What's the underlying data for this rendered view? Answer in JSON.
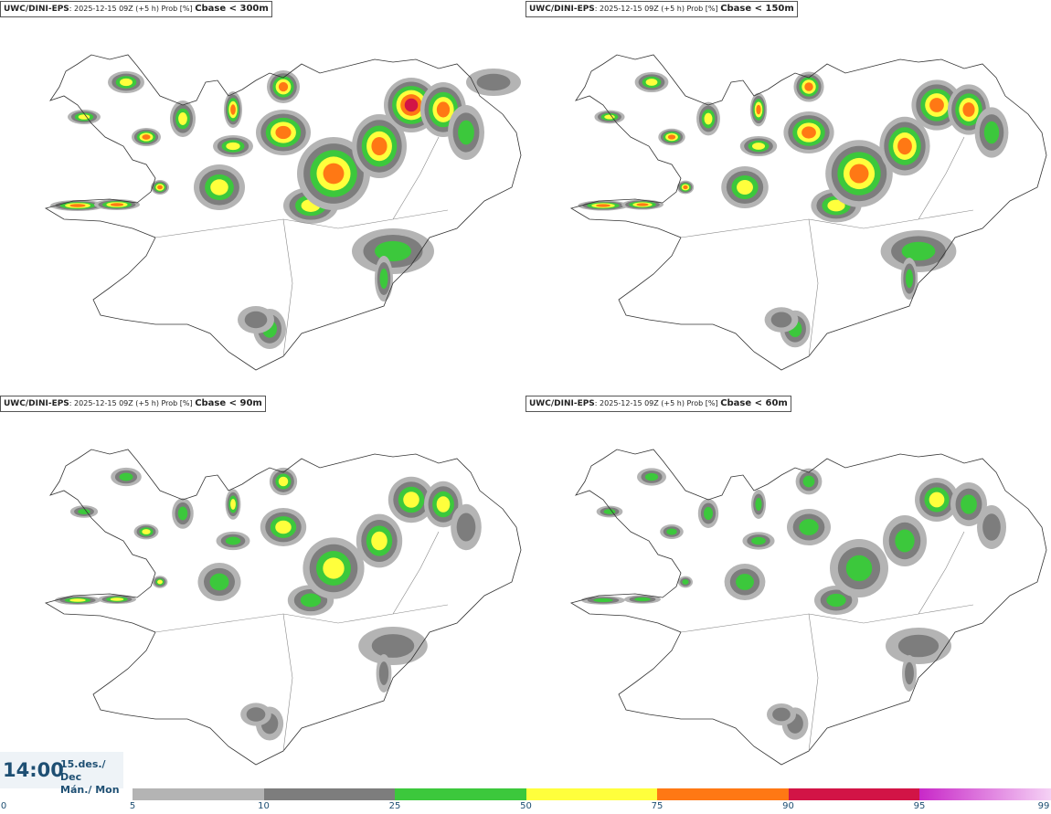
{
  "panels": [
    {
      "model": "UWC/DINI-EPS",
      "run": "2025-12-15 09Z (+5 h) Prob [%]",
      "field": "Cbase < 300m",
      "intensity": 1.0
    },
    {
      "model": "UWC/DINI-EPS",
      "run": "2025-12-15 09Z (+5 h) Prob [%]",
      "field": "Cbase < 150m",
      "intensity": 0.8
    },
    {
      "model": "UWC/DINI-EPS",
      "run": "2025-12-15 09Z (+5 h) Prob [%]",
      "field": "Cbase < 90m",
      "intensity": 0.6
    },
    {
      "model": "UWC/DINI-EPS",
      "run": "2025-12-15 09Z (+5 h) Prob [%]",
      "field": "Cbase < 60m",
      "intensity": 0.5
    }
  ],
  "valid_time": {
    "time": "14:00",
    "date_line1": "15.des./ Dec",
    "date_line2": "Mán./ Mon"
  },
  "legend": {
    "labels": [
      "0",
      "5",
      "10",
      "25",
      "50",
      "75",
      "90",
      "95",
      "99"
    ],
    "bins": [
      {
        "from": "5",
        "to": "10",
        "color": "#b4b4b4"
      },
      {
        "from": "10",
        "to": "25",
        "color": "#7d7d7d"
      },
      {
        "from": "25",
        "to": "50",
        "color": "#3cc83c"
      },
      {
        "from": "50",
        "to": "75",
        "color": "#ffff3c"
      },
      {
        "from": "75",
        "to": "90",
        "color": "#ff7814"
      },
      {
        "from": "90",
        "to": "95",
        "color": "#d21446"
      },
      {
        "from": "95",
        "to": "99",
        "color": "#c828c8"
      }
    ]
  }
}
